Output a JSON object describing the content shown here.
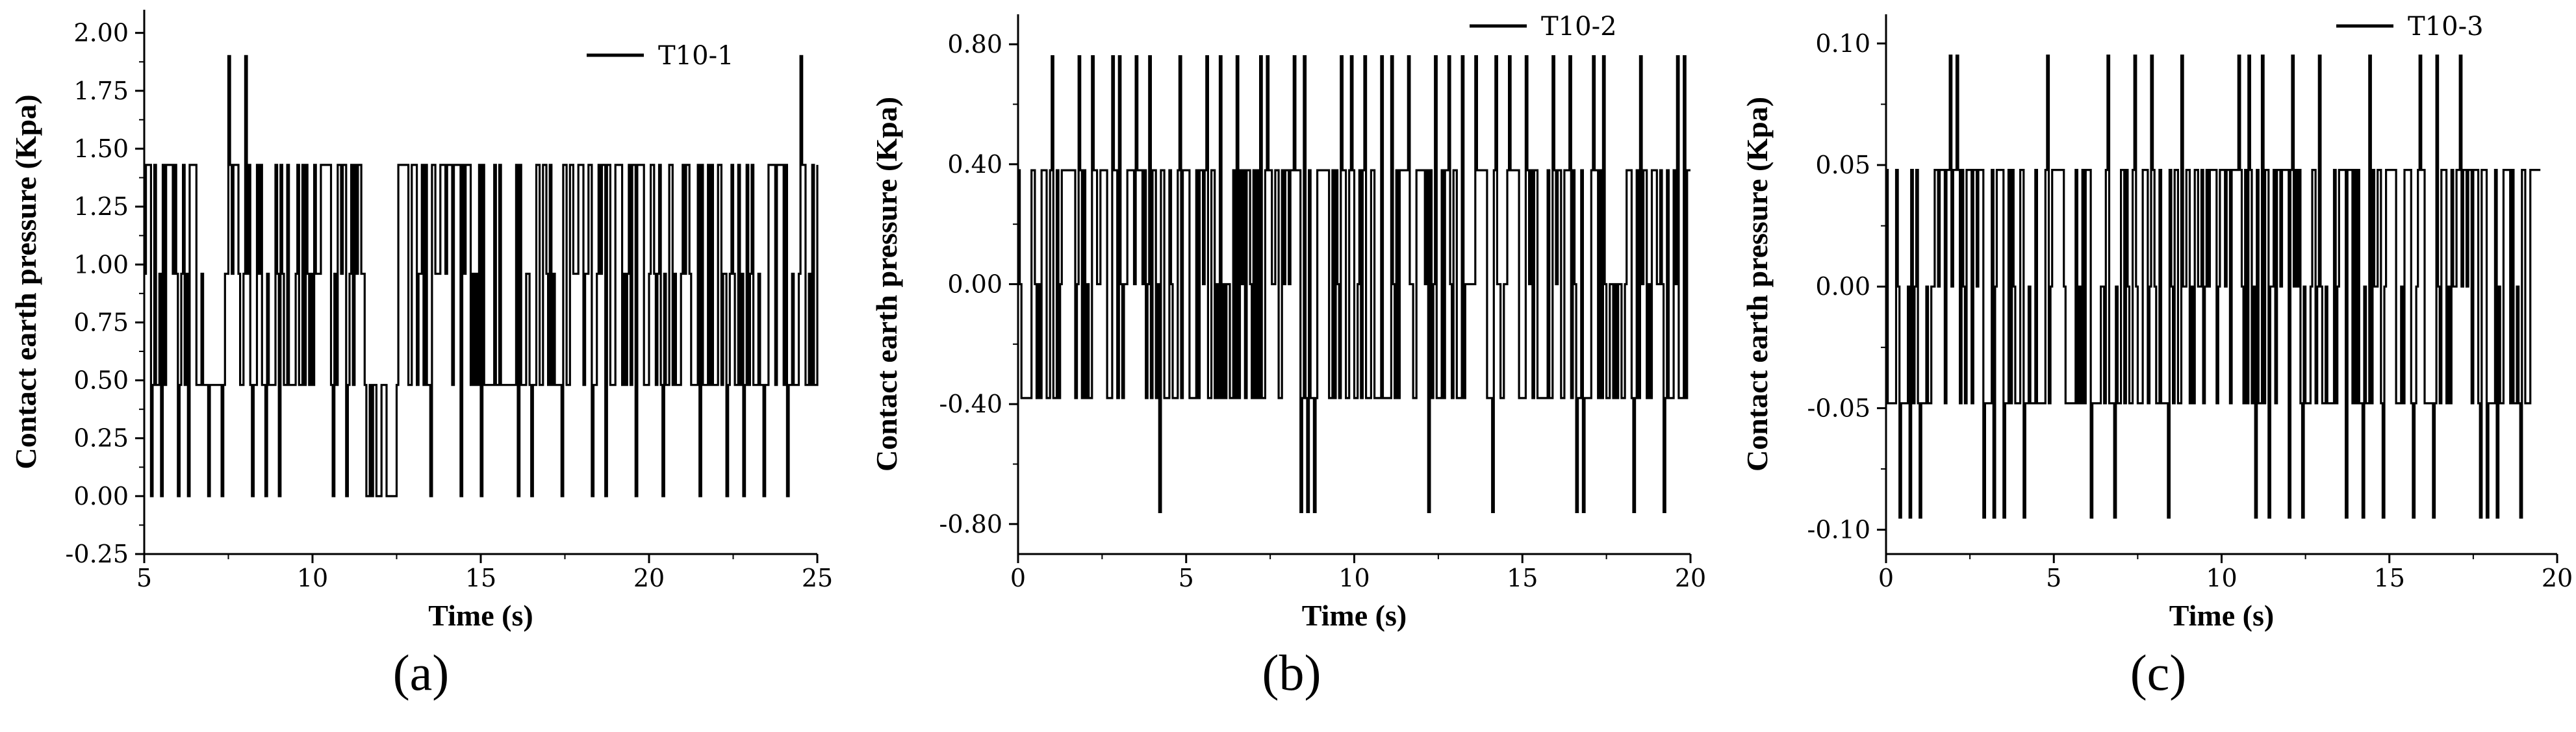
{
  "chart_data": [
    {
      "type": "line",
      "panel_label": "(a)",
      "xlabel": "Time (s)",
      "ylabel": "Contact earth pressure (Kpa)",
      "xlim": [
        5,
        25
      ],
      "ylim": [
        -0.25,
        2.1
      ],
      "x_ticks": [
        "5",
        "10",
        "15",
        "20",
        "25"
      ],
      "y_ticks": [
        "-0.25",
        "0.00",
        "0.25",
        "0.50",
        "0.75",
        "1.00",
        "1.25",
        "1.50",
        "1.75",
        "2.00"
      ],
      "grid": false,
      "legend_position": "top-right",
      "series": [
        {
          "name": "T10-1",
          "color": "#000000",
          "sampling_interval_s": 0.05,
          "levels": [
            0.0,
            0.48,
            0.96,
            1.43,
            1.9
          ],
          "segments": [
            {
              "from": 5.0,
              "to": 11.5,
              "low": 0.48,
              "high": 1.43
            },
            {
              "from": 11.5,
              "to": 12.5,
              "low": 0.0,
              "high": 0.48
            },
            {
              "from": 12.5,
              "to": 25.0,
              "low": 0.48,
              "high": 1.43
            }
          ],
          "drops": [
            5.2,
            5.5,
            6.0,
            6.3,
            6.9,
            7.3,
            8.2,
            8.6,
            9.0,
            10.6,
            11.0,
            13.5,
            14.4,
            15.0,
            16.1,
            16.5,
            17.4,
            18.3,
            18.7,
            19.6,
            20.4,
            21.5,
            22.3,
            22.8,
            23.4,
            24.1
          ],
          "spikes": [
            7.5,
            8.0,
            24.5
          ],
          "series_values_note": ""
        }
      ]
    },
    {
      "type": "line",
      "panel_label": "(b)",
      "xlabel": "Time (s)",
      "ylabel": "Contact earth pressure (Kpa)",
      "xlim": [
        0,
        20
      ],
      "ylim": [
        -0.9,
        0.9
      ],
      "x_ticks": [
        "0",
        "5",
        "10",
        "15",
        "20"
      ],
      "y_ticks": [
        "-0.80",
        "-0.40",
        "0.00",
        "0.40",
        "0.80"
      ],
      "grid": false,
      "legend_position": "top-right",
      "series": [
        {
          "name": "T10-2",
          "color": "#000000",
          "sampling_interval_s": 0.05,
          "levels": [
            -0.76,
            -0.38,
            0.0,
            0.38,
            0.76
          ],
          "segments": [
            {
              "from": 0.0,
              "to": 20.0,
              "low": -0.38,
              "high": 0.38
            }
          ],
          "drops": [
            4.2,
            8.4,
            8.6,
            8.8,
            12.2,
            14.1,
            16.6,
            16.8,
            18.3,
            19.2
          ],
          "spikes": [
            1.0,
            1.8,
            2.2,
            2.8,
            3.0,
            3.5,
            3.9,
            4.8,
            5.6,
            6.0,
            6.5,
            7.2,
            7.4,
            8.2,
            8.5,
            9.6,
            9.9,
            10.3,
            10.8,
            11.1,
            11.6,
            12.4,
            12.8,
            13.2,
            13.6,
            14.2,
            14.6,
            15.1,
            15.9,
            16.4,
            17.1,
            17.4,
            18.5,
            19.6,
            19.8
          ],
          "series_values_note": ""
        }
      ]
    },
    {
      "type": "line",
      "panel_label": "(c)",
      "xlabel": "Time (s)",
      "ylabel": "Contact earth pressure (Kpa)",
      "xlim": [
        0,
        20
      ],
      "ylim": [
        -0.11,
        0.112
      ],
      "x_ticks": [
        "0",
        "5",
        "10",
        "15",
        "20"
      ],
      "y_ticks": [
        "-0.10",
        "-0.05",
        "0.00",
        "0.05",
        "0.10"
      ],
      "grid": false,
      "legend_position": "top-right",
      "series": [
        {
          "name": "T10-3",
          "color": "#000000",
          "sampling_interval_s": 0.05,
          "levels": [
            -0.095,
            -0.048,
            0.0,
            0.048,
            0.095
          ],
          "segments": [
            {
              "from": 0.0,
              "to": 1.2,
              "low": -0.048,
              "high": 0.048
            },
            {
              "from": 1.2,
              "to": 1.4,
              "low": -0.095,
              "high": 0.0
            },
            {
              "from": 1.4,
              "to": 19.5,
              "low": -0.048,
              "high": 0.048
            }
          ],
          "drops": [
            0.4,
            0.7,
            1.0,
            2.9,
            3.2,
            3.5,
            4.1,
            6.1,
            6.8,
            7.4,
            8.4,
            11.0,
            11.4,
            12.0,
            12.4,
            13.7,
            14.2,
            14.8,
            15.7,
            16.3,
            17.7,
            17.9,
            18.2,
            18.9
          ],
          "spikes": [
            1.9,
            2.1,
            4.8,
            6.6,
            7.4,
            7.9,
            8.8,
            10.5,
            10.8,
            11.2,
            12.1,
            12.9,
            14.4,
            15.9,
            16.4,
            17.1
          ],
          "series_values_note": ""
        }
      ]
    }
  ]
}
